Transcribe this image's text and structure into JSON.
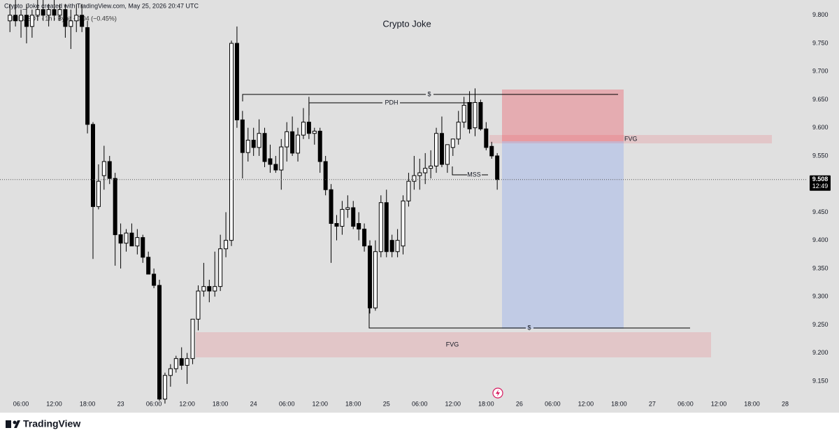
{
  "header": "Crypto_Joke created with TradingView.com, May 25, 2026 20:47 UTC",
  "symbol": "LINKUSDT · 1h · Bybit −0.04 (−0.45%)",
  "footer": "TradingView",
  "annotations": {
    "liquidity_high": "$",
    "pdh": "PDH",
    "mss": "MSS",
    "fvg_upper": "FVG",
    "liquidity_low": "$",
    "fvg_lower": "FVG"
  },
  "last_price": {
    "value": 9.508,
    "label": "9.508",
    "countdown": "12:49"
  },
  "chart_data": {
    "type": "candlestick",
    "title": "Crypto Joke",
    "up_color": "#ffffff",
    "down_color": "#000000",
    "categories": [
      null,
      null,
      "06:00",
      null,
      null,
      null,
      null,
      null,
      "12:00",
      null,
      null,
      null,
      null,
      null,
      "18:00",
      null,
      null,
      null,
      null,
      null,
      "23",
      null,
      null,
      null,
      null,
      null,
      "06:00",
      null,
      null,
      null,
      null,
      null,
      "12:00",
      null,
      null,
      null,
      null,
      null,
      "18:00",
      null,
      null,
      null,
      null,
      null,
      "24",
      null,
      null,
      null,
      null,
      null,
      "06:00",
      null,
      null,
      null,
      null,
      null,
      "12:00",
      null,
      null,
      null,
      null,
      null,
      "18:00",
      null,
      null,
      null,
      null,
      null,
      "25",
      null,
      null,
      null,
      null,
      null,
      "06:00",
      null,
      null,
      null,
      null,
      null,
      "12:00",
      null,
      null,
      null,
      null,
      null,
      "18:00",
      null,
      null,
      null,
      null,
      null,
      "26",
      null,
      null,
      null,
      null,
      null,
      "06:00",
      null,
      null,
      null,
      null,
      null,
      "12:00",
      null,
      null,
      null,
      null,
      null,
      "18:00",
      null,
      null,
      null,
      null,
      null,
      "27",
      null,
      null,
      null,
      null,
      null,
      "06:00",
      null,
      null,
      null,
      null,
      null,
      "12:00",
      null,
      null,
      null,
      null,
      null,
      "18:00",
      null,
      null,
      null,
      null,
      null,
      "28",
      null,
      null
    ],
    "open": [
      9.79,
      9.8,
      9.79,
      9.8,
      9.78,
      9.8,
      9.81,
      9.8,
      9.81,
      9.8,
      9.81,
      9.78,
      9.79,
      9.8,
      9.778,
      9.606,
      9.46,
      9.515,
      9.54,
      9.51,
      9.41,
      9.395,
      9.413,
      9.39,
      9.405,
      9.37,
      9.34,
      9.32,
      9.118,
      9.16,
      9.172,
      9.19,
      9.178,
      9.19,
      9.26,
      9.31,
      9.318,
      9.31,
      9.318,
      9.385,
      9.4,
      9.75,
      9.614,
      9.556,
      9.578,
      9.565,
      9.59,
      9.545,
      9.535,
      9.525,
      9.566,
      9.593,
      9.555,
      9.587,
      9.61,
      9.59,
      9.594,
      9.54,
      9.49,
      9.43,
      9.425,
      9.455,
      9.458,
      9.43,
      9.42,
      9.39,
      9.28,
      9.38,
      9.467,
      9.4,
      9.38,
      9.39,
      9.47,
      9.505,
      9.515,
      9.52,
      9.528,
      9.532,
      9.59,
      9.535,
      9.565,
      9.58,
      9.61,
      9.645,
      9.6,
      9.645,
      9.598,
      9.567,
      9.55,
      null,
      null,
      null,
      null,
      null,
      null,
      null,
      null,
      null,
      null,
      null,
      null,
      null,
      null,
      null,
      null,
      null,
      null,
      null,
      null,
      null,
      null,
      null,
      null,
      null,
      null,
      null,
      null,
      null,
      null,
      null,
      null,
      null,
      null,
      null,
      null,
      null,
      null,
      null,
      null,
      null,
      null,
      null,
      null,
      null,
      null,
      null,
      null,
      null,
      null,
      null,
      null,
      null,
      null
    ],
    "high": [
      9.82,
      9.83,
      9.81,
      9.82,
      9.81,
      9.83,
      9.83,
      9.82,
      9.83,
      9.82,
      9.82,
      9.81,
      9.82,
      9.82,
      9.79,
      9.61,
      9.535,
      9.568,
      9.55,
      9.52,
      9.43,
      9.42,
      9.43,
      9.42,
      9.41,
      9.38,
      9.35,
      9.33,
      9.165,
      9.18,
      9.195,
      9.21,
      9.2,
      9.26,
      9.32,
      9.36,
      9.33,
      9.38,
      9.41,
      9.45,
      9.755,
      9.78,
      9.63,
      9.6,
      9.6,
      9.615,
      9.6,
      9.57,
      9.55,
      9.58,
      9.61,
      9.62,
      9.6,
      9.635,
      9.655,
      9.6,
      9.6,
      9.55,
      9.5,
      9.445,
      9.47,
      9.48,
      9.47,
      9.45,
      9.43,
      9.4,
      9.4,
      9.48,
      9.49,
      9.41,
      9.42,
      9.48,
      9.52,
      9.55,
      9.545,
      9.555,
      9.56,
      9.6,
      9.62,
      9.57,
      9.58,
      9.63,
      9.655,
      9.665,
      9.67,
      9.65,
      9.61,
      9.575,
      9.555,
      null,
      null,
      null,
      null,
      null,
      null,
      null,
      null,
      null,
      null,
      null,
      null,
      null,
      null,
      null,
      null,
      null,
      null,
      null,
      null,
      null,
      null,
      null,
      null,
      null,
      null,
      null,
      null,
      null,
      null,
      null,
      null,
      null,
      null,
      null,
      null,
      null,
      null,
      null,
      null,
      null,
      null,
      null,
      null,
      null,
      null,
      null,
      null,
      null,
      null,
      null,
      null,
      null,
      null
    ],
    "low": [
      9.77,
      9.78,
      9.76,
      9.75,
      9.76,
      9.79,
      9.79,
      9.78,
      9.79,
      9.79,
      9.76,
      9.74,
      9.77,
      9.77,
      9.59,
      9.367,
      9.455,
      9.49,
      9.5,
      9.355,
      9.35,
      9.38,
      9.39,
      9.375,
      9.36,
      9.34,
      9.315,
      9.115,
      9.11,
      9.14,
      9.165,
      9.17,
      9.145,
      9.18,
      9.24,
      9.3,
      9.29,
      9.3,
      9.31,
      9.37,
      9.39,
      9.6,
      9.51,
      9.54,
      9.55,
      9.55,
      9.53,
      9.52,
      9.52,
      9.49,
      9.54,
      9.55,
      9.54,
      9.58,
      9.58,
      9.57,
      9.52,
      9.48,
      9.36,
      9.4,
      9.41,
      9.44,
      9.42,
      9.4,
      9.38,
      9.27,
      9.275,
      9.37,
      9.37,
      9.37,
      9.37,
      9.375,
      9.46,
      9.49,
      9.49,
      9.5,
      9.51,
      9.52,
      9.53,
      9.52,
      9.55,
      9.57,
      9.6,
      9.59,
      9.585,
      9.595,
      9.56,
      9.545,
      9.49,
      null,
      null,
      null,
      null,
      null,
      null,
      null,
      null,
      null,
      null,
      null,
      null,
      null,
      null,
      null,
      null,
      null,
      null,
      null,
      null,
      null,
      null,
      null,
      null,
      null,
      null,
      null,
      null,
      null,
      null,
      null,
      null,
      null,
      null,
      null,
      null,
      null,
      null,
      null,
      null,
      null,
      null,
      null,
      null,
      null,
      null,
      null,
      null,
      null,
      null,
      null,
      null,
      null,
      null
    ],
    "close": [
      9.8,
      9.79,
      9.8,
      9.78,
      9.8,
      9.81,
      9.8,
      9.81,
      9.8,
      9.81,
      9.78,
      9.79,
      9.8,
      9.78,
      9.606,
      9.46,
      9.505,
      9.54,
      9.51,
      9.41,
      9.395,
      9.413,
      9.39,
      9.405,
      9.37,
      9.34,
      9.32,
      9.118,
      9.16,
      9.172,
      9.19,
      9.178,
      9.19,
      9.26,
      9.31,
      9.318,
      9.31,
      9.318,
      9.385,
      9.4,
      9.75,
      9.614,
      9.556,
      9.578,
      9.565,
      9.59,
      9.54,
      9.535,
      9.525,
      9.566,
      9.593,
      9.555,
      9.587,
      9.61,
      9.59,
      9.594,
      9.54,
      9.49,
      9.43,
      9.425,
      9.455,
      9.458,
      9.425,
      9.42,
      9.39,
      9.28,
      9.38,
      9.467,
      9.38,
      9.38,
      9.4,
      9.47,
      9.505,
      9.515,
      9.52,
      9.528,
      9.532,
      9.59,
      9.535,
      9.57,
      9.58,
      9.61,
      9.64,
      9.598,
      9.645,
      9.598,
      9.565,
      9.55,
      9.508,
      null,
      null,
      null,
      null,
      null,
      null,
      null,
      null,
      null,
      null,
      null,
      null,
      null,
      null,
      null,
      null,
      null,
      null,
      null,
      null,
      null,
      null,
      null,
      null,
      null,
      null,
      null,
      null,
      null,
      null,
      null,
      null,
      null,
      null,
      null,
      null,
      null,
      null,
      null,
      null,
      null,
      null,
      null,
      null,
      null,
      null,
      null,
      null,
      null,
      null,
      null,
      null,
      null,
      null
    ],
    "ylim": [
      9.125,
      9.827
    ],
    "yticks": [
      {
        "value": 9.15,
        "label": "9.150"
      },
      {
        "value": 9.2,
        "label": "9.200"
      },
      {
        "value": 9.25,
        "label": "9.250"
      },
      {
        "value": 9.3,
        "label": "9.300"
      },
      {
        "value": 9.35,
        "label": "9.350"
      },
      {
        "value": 9.4,
        "label": "9.400"
      },
      {
        "value": 9.45,
        "label": "9.450"
      },
      {
        "value": 9.5,
        "label": "9.500"
      },
      {
        "value": 9.55,
        "label": "9.550"
      },
      {
        "value": 9.6,
        "label": "9.600"
      },
      {
        "value": 9.65,
        "label": "9.650"
      },
      {
        "value": 9.7,
        "label": "9.700"
      },
      {
        "value": 9.75,
        "label": "9.750"
      },
      {
        "value": 9.8,
        "label": "9.800"
      }
    ]
  }
}
